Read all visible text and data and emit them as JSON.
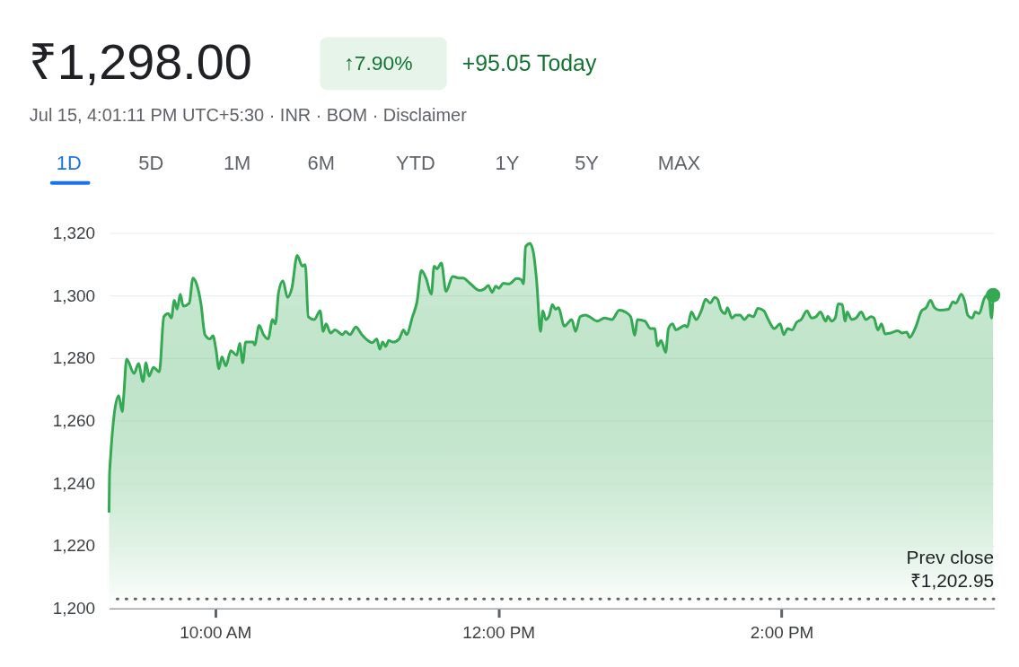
{
  "chart_data": {
    "type": "area",
    "title": "₹1,298.00",
    "subtitle": "Jul 15, 4:01:11 PM UTC+5:30 · INR · BOM · Disclaimer",
    "annotations": [
      "↑7.90%",
      "+95.05 Today",
      "1D",
      "5D",
      "1M",
      "6M",
      "YTD",
      "1Y",
      "5Y",
      "MAX"
    ],
    "series": [
      {
        "color": "#34a853",
        "x": [
          9.25,
          9.254,
          9.318,
          9.343,
          9.353,
          9.374,
          9.427,
          9.458,
          9.49,
          9.511,
          9.532,
          9.564,
          9.605,
          9.637,
          9.668,
          9.69,
          9.711,
          9.731,
          9.753,
          9.774,
          9.816,
          9.843,
          9.868,
          9.9,
          9.927,
          9.963,
          9.984,
          10.005,
          10.026,
          10.047,
          10.075,
          10.11,
          10.152,
          10.173,
          10.194,
          10.215,
          10.268,
          10.278,
          10.31,
          10.341,
          10.373,
          10.405,
          10.425,
          10.447,
          10.478,
          10.51,
          10.541,
          10.579,
          10.615,
          10.636,
          10.657,
          10.699,
          10.741,
          10.762,
          10.783,
          10.815,
          10.846,
          10.899,
          10.92,
          10.952,
          10.993,
          11.035,
          11.078,
          11.109,
          11.141,
          11.162,
          11.182,
          11.204,
          11.225,
          11.256,
          11.299,
          11.309,
          11.33,
          11.351,
          11.393,
          11.425,
          11.456,
          11.488,
          11.526,
          11.546,
          11.567,
          11.597,
          11.63,
          11.677,
          11.719,
          11.75,
          11.803,
          11.866,
          11.898,
          11.929,
          11.955,
          11.982,
          12.003,
          12.034,
          12.076,
          12.129,
          12.16,
          12.177,
          12.192,
          12.223,
          12.245,
          12.27,
          12.297,
          12.314,
          12.335,
          12.36,
          12.381,
          12.403,
          12.423,
          12.466,
          12.518,
          12.545,
          12.577,
          12.613,
          12.644,
          12.697,
          12.75,
          12.802,
          12.854,
          12.897,
          12.934,
          12.964,
          12.981,
          13.034,
          13.075,
          13.103,
          13.124,
          13.149,
          13.181,
          13.201,
          13.229,
          13.254,
          13.317,
          13.334,
          13.363,
          13.397,
          13.433,
          13.464,
          13.496,
          13.528,
          13.548,
          13.57,
          13.601,
          13.618,
          13.649,
          13.675,
          13.706,
          13.738,
          13.769,
          13.801,
          13.832,
          13.874,
          13.906,
          13.948,
          13.99,
          14.015,
          14.043,
          14.074,
          14.106,
          14.138,
          14.179,
          14.211,
          14.242,
          14.274,
          14.312,
          14.327,
          14.352,
          14.379,
          14.4,
          14.428,
          14.449,
          14.463,
          14.495,
          14.526,
          14.562,
          14.596,
          14.632,
          14.652,
          14.68,
          14.706,
          14.731,
          14.768,
          14.821,
          14.852,
          14.884,
          14.905,
          14.947,
          14.989,
          15.021,
          15.052,
          15.08,
          15.116,
          15.179,
          15.21,
          15.231,
          15.269,
          15.294,
          15.315,
          15.346,
          15.368,
          15.395,
          15.431,
          15.462,
          15.483,
          15.494
        ],
        "values": [
          1230.6,
          1243.7,
          1268,
          1262.9,
          1267.5,
          1279.7,
          1275.1,
          1278.2,
          1272.5,
          1278.5,
          1274.2,
          1277,
          1275.6,
          1293.2,
          1294.2,
          1292.8,
          1298.5,
          1295.6,
          1300.4,
          1296.6,
          1297.5,
          1305.6,
          1303.7,
          1297.1,
          1287.5,
          1286.1,
          1287.1,
          1282.8,
          1276.6,
          1280.4,
          1277.5,
          1282.3,
          1280.9,
          1284.7,
          1278.5,
          1285.1,
          1285.1,
          1284.2,
          1290.4,
          1287.5,
          1286.1,
          1292.3,
          1290.9,
          1300.9,
          1304.7,
          1299.4,
          1302.3,
          1312.8,
          1309.4,
          1309.9,
          1293.2,
          1292.3,
          1295.1,
          1288.5,
          1290.9,
          1288,
          1289,
          1287.5,
          1288.5,
          1287.5,
          1289.9,
          1287.5,
          1285.6,
          1284.9,
          1286.1,
          1282.8,
          1285.1,
          1283.7,
          1285.6,
          1285.1,
          1286.1,
          1287.1,
          1289,
          1287.5,
          1293.2,
          1298,
          1308,
          1305.6,
          1300.4,
          1309.4,
          1308.5,
          1310.4,
          1301.3,
          1306.1,
          1305.6,
          1305.6,
          1303.7,
          1301.6,
          1302,
          1303.2,
          1301,
          1303,
          1302.3,
          1303.9,
          1303.7,
          1305.4,
          1305.1,
          1303.7,
          1315.6,
          1316.6,
          1314.2,
          1304.7,
          1288.5,
          1295.1,
          1292.3,
          1293.7,
          1297.1,
          1295.6,
          1296.1,
          1290.2,
          1292.3,
          1288.5,
          1293.2,
          1293.7,
          1293.2,
          1291.8,
          1292.8,
          1292.3,
          1295.3,
          1294.7,
          1293.2,
          1287.3,
          1292.3,
          1291.8,
          1289.4,
          1289.4,
          1283.9,
          1285.6,
          1281.8,
          1289.4,
          1290.9,
          1289,
          1290.4,
          1289.9,
          1294.7,
          1292.3,
          1295.1,
          1298.8,
          1297.6,
          1299.4,
          1298.8,
          1295.6,
          1294.2,
          1296.1,
          1292.8,
          1293.7,
          1293.7,
          1292.3,
          1293.7,
          1293.2,
          1295.9,
          1295.1,
          1292.3,
          1289.4,
          1290.9,
          1287.5,
          1289.4,
          1289,
          1291.4,
          1292.3,
          1295.1,
          1292.8,
          1293.2,
          1294.7,
          1291.8,
          1293.4,
          1291.8,
          1292.8,
          1297.3,
          1297.1,
          1291.8,
          1294.7,
          1292.3,
          1292.8,
          1294.7,
          1292.3,
          1293.2,
          1292.8,
          1289,
          1290.9,
          1287.7,
          1288,
          1288.7,
          1288,
          1288.3,
          1286.6,
          1289.9,
          1295.1,
          1296.1,
          1298.5,
          1296.1,
          1295.3,
          1295.6,
          1298,
          1297.5,
          1300.4,
          1298,
          1293.7,
          1292.8,
          1294.7,
          1294.2,
          1299,
          1300.4,
          1292.8,
          1300.1
        ]
      },
      {
        "type": "scatter",
        "color": "#34a853",
        "x": [
          15.494
        ],
        "values": [
          1300.1
        ]
      }
    ],
    "xlim": [
      9.25,
      15.5
    ],
    "xticks": [
      {
        "value": 10,
        "label": "10:00 AM"
      },
      {
        "value": 12,
        "label": "12:00 PM"
      },
      {
        "value": 14,
        "label": "2:00 PM"
      }
    ],
    "ylim": [
      1200,
      1320
    ],
    "yticks": [
      {
        "value": 1200,
        "label": "1,200"
      },
      {
        "value": 1220,
        "label": "1,220"
      },
      {
        "value": 1240,
        "label": "1,240"
      },
      {
        "value": 1260,
        "label": "1,260"
      },
      {
        "value": 1280,
        "label": "1,280"
      },
      {
        "value": 1300,
        "label": "1,300"
      },
      {
        "value": 1320,
        "label": "1,320"
      }
    ],
    "grid": "y",
    "ref_lines": [
      {
        "axis": "y",
        "value": 1202.95,
        "label": "Prev close\n₹1,202.95",
        "color": "#5f6368",
        "line_style": "dotted"
      }
    ]
  }
}
